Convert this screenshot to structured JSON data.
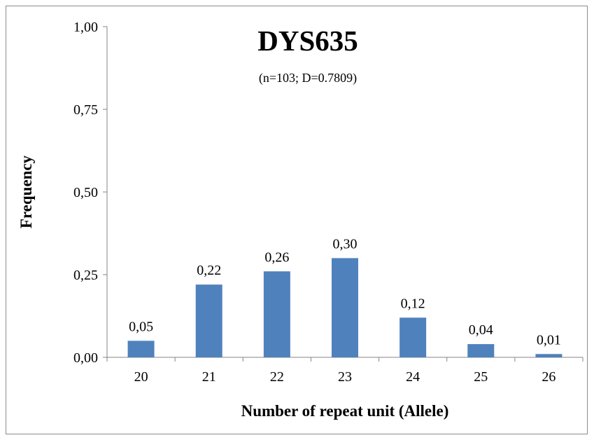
{
  "chart_data": {
    "type": "bar",
    "title": "DYS635",
    "subtitle": "(n=103; D=0.7809)",
    "xlabel": "Number of repeat unit (Allele)",
    "ylabel": "Frequency",
    "categories": [
      "20",
      "21",
      "22",
      "23",
      "24",
      "25",
      "26"
    ],
    "values": [
      0.05,
      0.22,
      0.26,
      0.3,
      0.12,
      0.04,
      0.01
    ],
    "data_labels": [
      "0,05",
      "0,22",
      "0,26",
      "0,30",
      "0,12",
      "0,04",
      "0,01"
    ],
    "ylim": [
      0,
      1
    ],
    "yticks": [
      0,
      0.25,
      0.5,
      0.75,
      1.0
    ],
    "ytick_labels": [
      "0,00",
      "0,25",
      "0,50",
      "0,75",
      "1,00"
    ],
    "grid": false,
    "legend": "none",
    "bar_color": "#4f81bd"
  }
}
